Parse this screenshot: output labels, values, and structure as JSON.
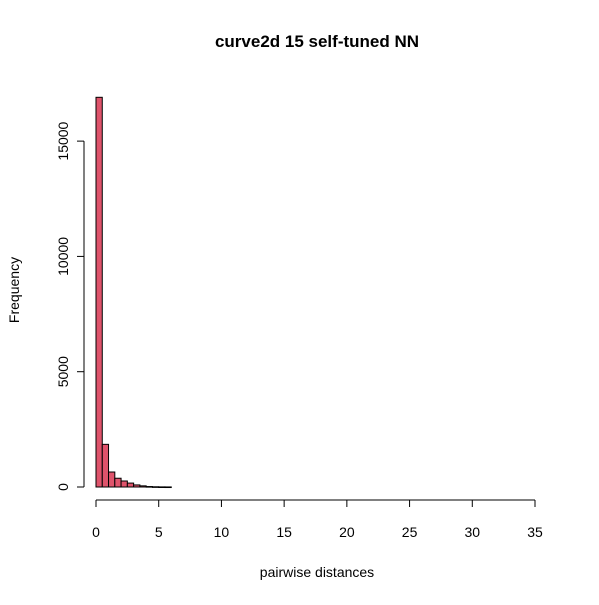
{
  "chart_data": {
    "type": "histogram",
    "title": "curve2d 15 self-tuned NN",
    "xlabel": "pairwise distances",
    "ylabel": "Frequency",
    "bin_width": 0.5,
    "bins": [
      {
        "x0": 0.0,
        "x1": 0.5,
        "count": 16900
      },
      {
        "x0": 0.5,
        "x1": 1.0,
        "count": 1850
      },
      {
        "x0": 1.0,
        "x1": 1.5,
        "count": 650
      },
      {
        "x0": 1.5,
        "x1": 2.0,
        "count": 380
      },
      {
        "x0": 2.0,
        "x1": 2.5,
        "count": 260
      },
      {
        "x0": 2.5,
        "x1": 3.0,
        "count": 170
      },
      {
        "x0": 3.0,
        "x1": 3.5,
        "count": 90
      },
      {
        "x0": 3.5,
        "x1": 4.0,
        "count": 50
      },
      {
        "x0": 4.0,
        "x1": 4.5,
        "count": 20
      },
      {
        "x0": 4.5,
        "x1": 5.0,
        "count": 10
      },
      {
        "x0": 5.0,
        "x1": 5.5,
        "count": 5
      },
      {
        "x0": 5.5,
        "x1": 6.0,
        "count": 3
      }
    ],
    "x_ticks": [
      0,
      5,
      10,
      15,
      20,
      25,
      30,
      35
    ],
    "y_ticks": [
      0,
      5000,
      10000,
      15000
    ],
    "xlim": [
      0,
      35
    ],
    "ylim": [
      0,
      17000
    ],
    "bar_color": "#DF536B",
    "grid": false,
    "legend": "none"
  }
}
